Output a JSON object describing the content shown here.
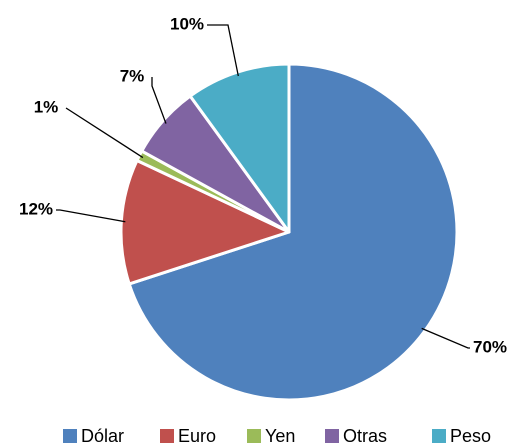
{
  "chart_data": {
    "type": "pie",
    "categories": [
      "Dólar",
      "Euro",
      "Yen",
      "Otras",
      "Peso"
    ],
    "values": [
      70,
      12,
      1,
      7,
      10
    ],
    "value_labels": [
      "70%",
      "12%",
      "1%",
      "7%",
      "10%"
    ],
    "colors": [
      "#4f81bd",
      "#c0504d",
      "#9bbb59",
      "#8064a2",
      "#4bacc6"
    ],
    "legend": "bottom"
  }
}
